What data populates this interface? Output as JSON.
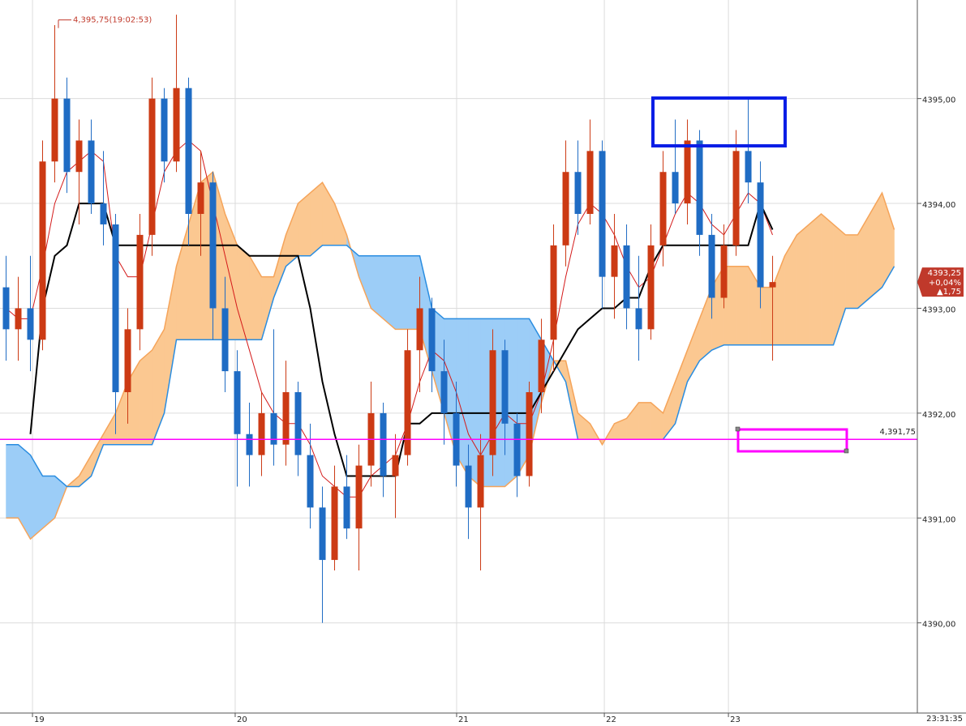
{
  "chart_data": {
    "type": "candlestick",
    "xlim": [
      -0.5,
      74.83
    ],
    "ylim": [
      4389.14,
      4395.94
    ],
    "yticks": [
      {
        "value": 4390,
        "label": "4390,00"
      },
      {
        "value": 4391,
        "label": "4391,00"
      },
      {
        "value": 4392,
        "label": "4392,00"
      },
      {
        "value": 4393,
        "label": "4393,00"
      },
      {
        "value": 4394,
        "label": "4394,00"
      },
      {
        "value": 4395,
        "label": "4395,00"
      }
    ],
    "xticks": [
      {
        "value": 2.17,
        "label": "19"
      },
      {
        "value": 18.83,
        "label": "20"
      },
      {
        "value": 37.03,
        "label": "21"
      },
      {
        "value": 49.17,
        "label": "22"
      },
      {
        "value": 59.37,
        "label": "23"
      }
    ],
    "grid": true,
    "up_color": "#cc3a14",
    "down_color": "#1f6cc4",
    "open": [
      4393.2,
      4392.8,
      4393.0,
      4392.7,
      4394.4,
      4395.0,
      4394.3,
      4394.6,
      4394.0,
      4393.8,
      4392.2,
      4392.8,
      4393.7,
      4395.0,
      4394.4,
      4395.1,
      4393.9,
      4394.2,
      4393.0,
      4392.4,
      4391.8,
      4391.6,
      4392.0,
      4391.7,
      4392.2,
      4391.6,
      4391.1,
      4390.6,
      4391.3,
      4390.9,
      4391.5,
      4392.0,
      4391.4,
      4391.6,
      4392.6,
      4393.0,
      4392.4,
      4392.0,
      4391.5,
      4391.1,
      4391.6,
      4392.6,
      4391.9,
      4391.4,
      4392.2,
      4392.7,
      4393.6,
      4394.3,
      4393.9,
      4394.5,
      4393.3,
      4393.6,
      4393.0,
      4392.8,
      4393.6,
      4394.3,
      4394.0,
      4394.6,
      4393.7,
      4393.1,
      4393.6,
      4394.5,
      4394.2,
      4393.2
    ],
    "high": [
      4393.5,
      4393.3,
      4393.5,
      4394.6,
      4395.7,
      4395.2,
      4394.8,
      4394.8,
      4394.5,
      4393.9,
      4393.0,
      4393.9,
      4395.2,
      4395.1,
      4395.8,
      4395.2,
      4394.5,
      4394.3,
      4393.3,
      4392.6,
      4392.1,
      4392.2,
      4392.8,
      4392.5,
      4392.3,
      4391.9,
      4391.3,
      4391.5,
      4391.6,
      4391.7,
      4392.3,
      4392.1,
      4391.8,
      4392.8,
      4393.3,
      4393.1,
      4392.7,
      4392.3,
      4391.7,
      4391.8,
      4392.8,
      4392.7,
      4392.0,
      4392.3,
      4392.9,
      4393.8,
      4394.6,
      4394.6,
      4394.8,
      4394.6,
      4393.9,
      4393.8,
      4393.5,
      4393.8,
      4394.5,
      4394.8,
      4394.8,
      4394.7,
      4393.9,
      4393.8,
      4394.7,
      4395.0,
      4394.4,
      4393.5
    ],
    "low": [
      4392.5,
      4392.5,
      4392.4,
      4392.6,
      4394.2,
      4394.1,
      4393.8,
      4393.9,
      4393.6,
      4391.8,
      4391.9,
      4392.6,
      4393.5,
      4394.2,
      4394.3,
      4393.6,
      4393.5,
      4392.7,
      4392.2,
      4391.3,
      4391.3,
      4391.4,
      4391.5,
      4391.5,
      4391.4,
      4390.9,
      4390.0,
      4390.5,
      4390.8,
      4390.5,
      4391.3,
      4391.2,
      4391.0,
      4391.5,
      4392.2,
      4392.2,
      4391.7,
      4391.3,
      4390.8,
      4390.5,
      4391.4,
      4391.6,
      4391.2,
      4391.3,
      4392.0,
      4392.4,
      4393.4,
      4393.7,
      4393.8,
      4393.0,
      4392.9,
      4392.8,
      4392.5,
      4392.7,
      4393.4,
      4393.9,
      4393.8,
      4393.5,
      4392.9,
      4393.0,
      4393.5,
      4394.0,
      4393.0,
      4392.5
    ],
    "close": [
      4392.8,
      4393.0,
      4392.7,
      4394.4,
      4395.0,
      4394.3,
      4394.6,
      4394.0,
      4393.8,
      4392.2,
      4392.8,
      4393.7,
      4395.0,
      4394.4,
      4395.1,
      4393.9,
      4394.2,
      4393.0,
      4392.4,
      4391.8,
      4391.6,
      4392.0,
      4391.7,
      4392.2,
      4391.6,
      4391.1,
      4390.6,
      4391.3,
      4390.9,
      4391.5,
      4392.0,
      4391.4,
      4391.6,
      4392.6,
      4393.0,
      4392.4,
      4392.0,
      4391.5,
      4391.1,
      4391.6,
      4392.6,
      4391.9,
      4391.4,
      4392.2,
      4392.7,
      4393.6,
      4394.3,
      4393.9,
      4394.5,
      4393.3,
      4393.6,
      4393.0,
      4392.8,
      4393.6,
      4394.3,
      4394.0,
      4394.6,
      4393.7,
      4393.1,
      4393.6,
      4394.5,
      4394.2,
      4393.2,
      4393.25
    ],
    "tenkan": {
      "color": "#d41a1a",
      "values": [
        4393.0,
        4392.9,
        4392.9,
        4393.4,
        4394.0,
        4394.3,
        4394.4,
        4394.5,
        4394.4,
        4393.5,
        4393.3,
        4393.3,
        4393.8,
        4394.3,
        4394.5,
        4394.6,
        4394.5,
        4394.0,
        4393.5,
        4393.0,
        4392.6,
        4392.2,
        4392.0,
        4391.9,
        4391.9,
        4391.7,
        4391.4,
        4391.3,
        4391.2,
        4391.2,
        4391.4,
        4391.5,
        4391.6,
        4391.9,
        4392.3,
        4392.6,
        4392.5,
        4392.2,
        4391.8,
        4391.6,
        4391.8,
        4392.0,
        4391.9,
        4391.9,
        4392.2,
        4392.7,
        4393.3,
        4393.8,
        4394.0,
        4393.9,
        4393.7,
        4393.4,
        4393.2,
        4393.3,
        4393.6,
        4393.9,
        4394.1,
        4394.0,
        4393.8,
        4393.7,
        4393.9,
        4394.1,
        4394.0,
        4393.7
      ]
    },
    "kijun": {
      "color": "#000000",
      "values": [
        null,
        null,
        4391.8,
        4393.0,
        4393.5,
        4393.6,
        4394.0,
        4394.0,
        4394.0,
        4393.6,
        4393.6,
        4393.6,
        4393.6,
        4393.6,
        4393.6,
        4393.6,
        4393.6,
        4393.6,
        4393.6,
        4393.6,
        4393.5,
        4393.5,
        4393.5,
        4393.5,
        4393.5,
        4393.0,
        4392.3,
        4391.8,
        4391.4,
        4391.4,
        4391.4,
        4391.4,
        4391.4,
        4391.9,
        4391.9,
        4392.0,
        4392.0,
        4392.0,
        4392.0,
        4392.0,
        4392.0,
        4392.0,
        4392.0,
        4392.0,
        4392.2,
        4392.4,
        4392.6,
        4392.8,
        4392.9,
        4393.0,
        4393.0,
        4393.1,
        4393.1,
        4393.4,
        4393.6,
        4393.6,
        4393.6,
        4393.6,
        4393.6,
        4393.6,
        4393.6,
        4393.6,
        4394.0,
        4393.75
      ]
    },
    "span_a": {
      "color": "#f5a45a",
      "fill": "#fbc891",
      "values": [
        4391.0,
        4391.0,
        4390.8,
        4390.9,
        4391.0,
        4391.3,
        4391.4,
        4391.6,
        4391.8,
        4392.0,
        4392.3,
        4392.5,
        4392.6,
        4392.8,
        4393.4,
        4393.8,
        4394.2,
        4394.3,
        4393.9,
        4393.6,
        4393.5,
        4393.3,
        4393.3,
        4393.7,
        4394.0,
        4394.1,
        4394.2,
        4394.0,
        4393.7,
        4393.3,
        4393.0,
        4392.9,
        4392.8,
        4392.8,
        4392.8,
        4392.4,
        4392.0,
        4391.6,
        4391.4,
        4391.3,
        4391.3,
        4391.3,
        4391.4,
        4391.6,
        4392.1,
        4392.5,
        4392.5,
        4392.0,
        4391.9,
        4391.7,
        4391.9,
        4391.95,
        4392.1,
        4392.1,
        4392.0,
        4392.3,
        4392.6,
        4392.9,
        4393.2,
        4393.4,
        4393.4,
        4393.4,
        4393.2,
        4393.2,
        4393.5,
        4393.7,
        4393.8,
        4393.9,
        4393.8,
        4393.7,
        4393.7,
        4393.9,
        4394.1,
        4393.75
      ]
    },
    "span_b": {
      "color": "#2a8de0",
      "fill": "#9ccdf7",
      "values": [
        4391.7,
        4391.7,
        4391.6,
        4391.4,
        4391.4,
        4391.3,
        4391.3,
        4391.4,
        4391.7,
        4391.7,
        4391.7,
        4391.7,
        4391.7,
        4392.0,
        4392.7,
        4392.7,
        4392.7,
        4392.7,
        4392.7,
        4392.7,
        4392.7,
        4392.7,
        4393.1,
        4393.4,
        4393.5,
        4393.5,
        4393.6,
        4393.6,
        4393.6,
        4393.5,
        4393.5,
        4393.5,
        4393.5,
        4393.5,
        4393.5,
        4393.0,
        4392.9,
        4392.9,
        4392.9,
        4392.9,
        4392.9,
        4392.9,
        4392.9,
        4392.9,
        4392.7,
        4392.5,
        4392.3,
        4391.75,
        4391.75,
        4391.75,
        4391.75,
        4391.75,
        4391.75,
        4391.75,
        4391.75,
        4391.9,
        4392.3,
        4392.5,
        4392.6,
        4392.65,
        4392.65,
        4392.65,
        4392.65,
        4392.65,
        4392.65,
        4392.65,
        4392.65,
        4392.65,
        4392.65,
        4393.0,
        4393.0,
        4393.1,
        4393.2,
        4393.4
      ]
    },
    "hline": {
      "value": 4391.75,
      "label": "4,391,75",
      "color": "#ff00ff"
    },
    "high_marker": {
      "value": 4395.75,
      "label": "4,395,75(19:02:53)"
    },
    "last_price": {
      "value": 4393.25,
      "label": "4393,25",
      "change_pct": "+0,04%",
      "change": "▲1,75"
    },
    "time": "23:31:35"
  }
}
